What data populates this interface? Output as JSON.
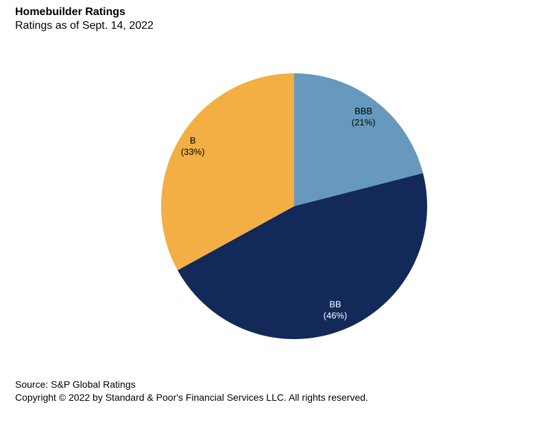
{
  "chart_data": {
    "type": "pie",
    "title": "Homebuilder Ratings",
    "subtitle": "Ratings as of Sept. 14, 2022",
    "legend": "none",
    "labels_inside": true,
    "direction": "clockwise",
    "start_angle_deg": 0,
    "center": [
      429,
      301
    ],
    "radius": 194,
    "slices": [
      {
        "label": "BBB",
        "value": 21,
        "display": "BBB (21%)",
        "color": "#6699BD",
        "label_color": "#000000",
        "label_radius": 0.85
      },
      {
        "label": "BB",
        "value": 46,
        "display": "BB (46%)",
        "color": "#12295A",
        "label_color": "#FFFFFF",
        "label_radius": 0.84
      },
      {
        "label": "B",
        "value": 33,
        "display": "B (33%)",
        "color": "#F3AE44",
        "label_color": "#000000",
        "label_radius": 0.885
      }
    ]
  },
  "footer": {
    "source": "Source: S&P Global Ratings",
    "copyright": "Copyright © 2022 by Standard & Poor's Financial Services LLC. All rights reserved."
  }
}
